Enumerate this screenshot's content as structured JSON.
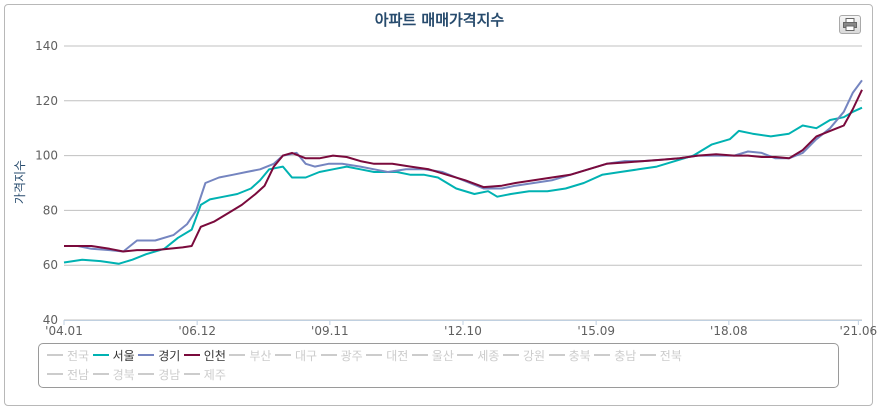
{
  "chart_data": {
    "type": "line",
    "title": "아파트 매매가격지수",
    "ylabel": "가격지수",
    "xlabel": "",
    "ylim": [
      40,
      140
    ],
    "yticks": [
      40,
      60,
      80,
      100,
      120,
      140
    ],
    "xlim": [
      2004.0,
      2021.5
    ],
    "xticks": [
      {
        "label": "'04.01",
        "x": 2004.0
      },
      {
        "label": "'06.12",
        "x": 2006.92
      },
      {
        "label": "'09.11",
        "x": 2009.83
      },
      {
        "label": "'12.10",
        "x": 2012.75
      },
      {
        "label": "'15.09",
        "x": 2015.67
      },
      {
        "label": "'18.08",
        "x": 2018.58
      },
      {
        "label": "'21.06",
        "x": 2021.42
      }
    ],
    "grid": true,
    "legend_position": "bottom",
    "series": [
      {
        "name": "서울",
        "color": "#00b2b2",
        "visible": true,
        "points": [
          [
            2004.0,
            61
          ],
          [
            2004.4,
            62
          ],
          [
            2004.8,
            61.5
          ],
          [
            2005.2,
            60.5
          ],
          [
            2005.5,
            62
          ],
          [
            2005.8,
            64
          ],
          [
            2006.2,
            66
          ],
          [
            2006.5,
            70
          ],
          [
            2006.8,
            73
          ],
          [
            2007.0,
            82
          ],
          [
            2007.2,
            84
          ],
          [
            2007.5,
            85
          ],
          [
            2007.8,
            86
          ],
          [
            2008.1,
            88
          ],
          [
            2008.3,
            91
          ],
          [
            2008.5,
            95
          ],
          [
            2008.8,
            96
          ],
          [
            2009.0,
            92
          ],
          [
            2009.3,
            92
          ],
          [
            2009.6,
            94
          ],
          [
            2009.9,
            95
          ],
          [
            2010.2,
            96
          ],
          [
            2010.5,
            95
          ],
          [
            2010.8,
            94
          ],
          [
            2011.0,
            94
          ],
          [
            2011.3,
            94
          ],
          [
            2011.6,
            93
          ],
          [
            2011.9,
            93
          ],
          [
            2012.2,
            92
          ],
          [
            2012.6,
            88
          ],
          [
            2013.0,
            86
          ],
          [
            2013.3,
            87
          ],
          [
            2013.5,
            85
          ],
          [
            2013.8,
            86
          ],
          [
            2014.2,
            87
          ],
          [
            2014.6,
            87
          ],
          [
            2015.0,
            88
          ],
          [
            2015.4,
            90
          ],
          [
            2015.8,
            93
          ],
          [
            2016.2,
            94
          ],
          [
            2016.6,
            95
          ],
          [
            2017.0,
            96
          ],
          [
            2017.4,
            98
          ],
          [
            2017.8,
            100
          ],
          [
            2018.2,
            104
          ],
          [
            2018.6,
            106
          ],
          [
            2018.8,
            109
          ],
          [
            2019.1,
            108
          ],
          [
            2019.5,
            107
          ],
          [
            2019.9,
            108
          ],
          [
            2020.2,
            111
          ],
          [
            2020.5,
            110
          ],
          [
            2020.8,
            113
          ],
          [
            2021.1,
            114
          ],
          [
            2021.3,
            116
          ],
          [
            2021.5,
            117.5
          ]
        ]
      },
      {
        "name": "경기",
        "color": "#7585c0",
        "visible": true,
        "points": [
          [
            2004.0,
            67
          ],
          [
            2004.3,
            67
          ],
          [
            2004.6,
            66
          ],
          [
            2005.0,
            65.5
          ],
          [
            2005.3,
            65
          ],
          [
            2005.6,
            69
          ],
          [
            2006.0,
            69
          ],
          [
            2006.4,
            71
          ],
          [
            2006.7,
            75
          ],
          [
            2006.9,
            80
          ],
          [
            2007.1,
            90
          ],
          [
            2007.4,
            92
          ],
          [
            2007.7,
            93
          ],
          [
            2008.0,
            94
          ],
          [
            2008.3,
            95
          ],
          [
            2008.6,
            97
          ],
          [
            2008.8,
            100
          ],
          [
            2009.1,
            101
          ],
          [
            2009.3,
            97
          ],
          [
            2009.5,
            96
          ],
          [
            2009.8,
            97
          ],
          [
            2010.1,
            97
          ],
          [
            2010.5,
            96
          ],
          [
            2010.8,
            95
          ],
          [
            2011.1,
            94
          ],
          [
            2011.5,
            95
          ],
          [
            2011.9,
            95
          ],
          [
            2012.3,
            94
          ],
          [
            2012.6,
            92
          ],
          [
            2012.9,
            90
          ],
          [
            2013.2,
            88
          ],
          [
            2013.6,
            88
          ],
          [
            2013.9,
            89
          ],
          [
            2014.3,
            90
          ],
          [
            2014.7,
            91
          ],
          [
            2015.1,
            93
          ],
          [
            2015.5,
            95
          ],
          [
            2015.9,
            97
          ],
          [
            2016.3,
            98
          ],
          [
            2016.7,
            98
          ],
          [
            2017.1,
            98.5
          ],
          [
            2017.5,
            99
          ],
          [
            2017.9,
            100
          ],
          [
            2018.3,
            100
          ],
          [
            2018.7,
            100
          ],
          [
            2019.0,
            101.5
          ],
          [
            2019.3,
            101
          ],
          [
            2019.6,
            99
          ],
          [
            2019.9,
            99
          ],
          [
            2020.2,
            101
          ],
          [
            2020.5,
            106
          ],
          [
            2020.8,
            110
          ],
          [
            2021.1,
            116
          ],
          [
            2021.3,
            123
          ],
          [
            2021.5,
            127.5
          ]
        ]
      },
      {
        "name": "인천",
        "color": "#7a0a3c",
        "visible": true,
        "points": [
          [
            2004.0,
            67
          ],
          [
            2004.3,
            67
          ],
          [
            2004.6,
            67
          ],
          [
            2005.0,
            66
          ],
          [
            2005.3,
            65
          ],
          [
            2005.6,
            65.5
          ],
          [
            2006.0,
            65.5
          ],
          [
            2006.3,
            66
          ],
          [
            2006.6,
            66.5
          ],
          [
            2006.8,
            67
          ],
          [
            2007.0,
            74
          ],
          [
            2007.3,
            76
          ],
          [
            2007.6,
            79
          ],
          [
            2007.9,
            82
          ],
          [
            2008.2,
            86
          ],
          [
            2008.4,
            89
          ],
          [
            2008.6,
            96
          ],
          [
            2008.8,
            100
          ],
          [
            2009.0,
            101
          ],
          [
            2009.3,
            99
          ],
          [
            2009.6,
            99
          ],
          [
            2009.9,
            100
          ],
          [
            2010.2,
            99.5
          ],
          [
            2010.5,
            98
          ],
          [
            2010.8,
            97
          ],
          [
            2011.2,
            97
          ],
          [
            2011.6,
            96
          ],
          [
            2012.0,
            95
          ],
          [
            2012.4,
            93
          ],
          [
            2012.8,
            91
          ],
          [
            2013.2,
            88.5
          ],
          [
            2013.6,
            89
          ],
          [
            2013.9,
            90
          ],
          [
            2014.3,
            91
          ],
          [
            2014.7,
            92
          ],
          [
            2015.1,
            93
          ],
          [
            2015.5,
            95
          ],
          [
            2015.9,
            97
          ],
          [
            2016.3,
            97.5
          ],
          [
            2016.7,
            98
          ],
          [
            2017.1,
            98.5
          ],
          [
            2017.5,
            99
          ],
          [
            2017.9,
            100
          ],
          [
            2018.3,
            100.5
          ],
          [
            2018.7,
            100
          ],
          [
            2019.0,
            100
          ],
          [
            2019.3,
            99.5
          ],
          [
            2019.6,
            99.5
          ],
          [
            2019.9,
            99
          ],
          [
            2020.2,
            102
          ],
          [
            2020.5,
            107
          ],
          [
            2020.8,
            109
          ],
          [
            2021.1,
            111
          ],
          [
            2021.3,
            117
          ],
          [
            2021.5,
            124
          ]
        ]
      }
    ]
  },
  "header": {
    "title": "아파트 매매가격지수"
  },
  "toolbar": {
    "print_icon": "printer-icon"
  },
  "legend": {
    "items": [
      {
        "label": "전국",
        "color": "#cccccc",
        "active": false
      },
      {
        "label": "서울",
        "color": "#00b2b2",
        "active": true
      },
      {
        "label": "경기",
        "color": "#7585c0",
        "active": true
      },
      {
        "label": "인천",
        "color": "#7a0a3c",
        "active": true
      },
      {
        "label": "부산",
        "color": "#cccccc",
        "active": false
      },
      {
        "label": "대구",
        "color": "#cccccc",
        "active": false
      },
      {
        "label": "광주",
        "color": "#cccccc",
        "active": false
      },
      {
        "label": "대전",
        "color": "#cccccc",
        "active": false
      },
      {
        "label": "울산",
        "color": "#cccccc",
        "active": false
      },
      {
        "label": "세종",
        "color": "#cccccc",
        "active": false
      },
      {
        "label": "강원",
        "color": "#cccccc",
        "active": false
      },
      {
        "label": "충북",
        "color": "#cccccc",
        "active": false
      },
      {
        "label": "충남",
        "color": "#cccccc",
        "active": false
      },
      {
        "label": "전북",
        "color": "#cccccc",
        "active": false
      },
      {
        "label": "전남",
        "color": "#cccccc",
        "active": false
      },
      {
        "label": "경북",
        "color": "#cccccc",
        "active": false
      },
      {
        "label": "경남",
        "color": "#cccccc",
        "active": false
      },
      {
        "label": "제주",
        "color": "#cccccc",
        "active": false
      }
    ]
  }
}
